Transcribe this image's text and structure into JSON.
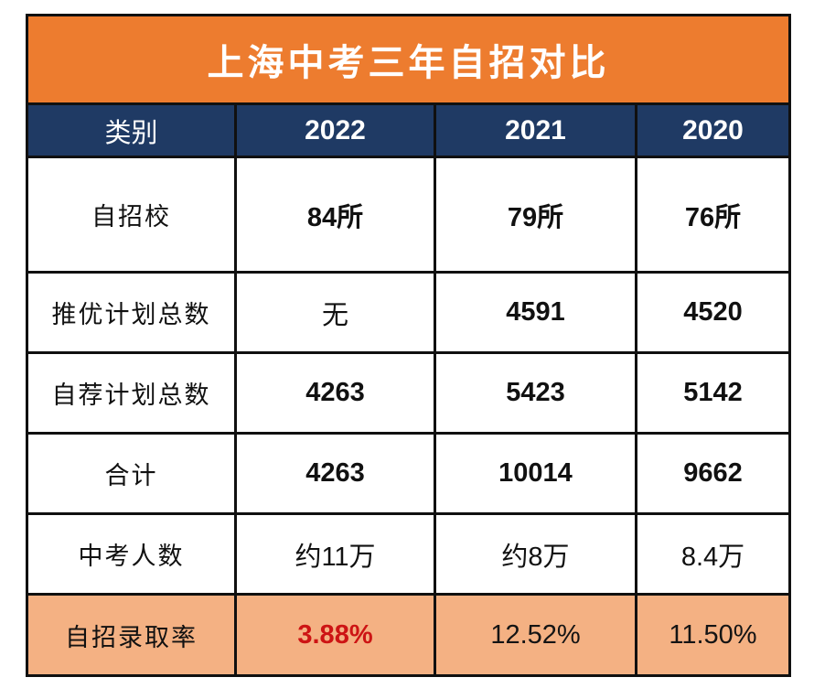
{
  "title": "上海中考三年自招对比",
  "header": {
    "category": "类别",
    "year1": "2022",
    "year2": "2021",
    "year3": "2020"
  },
  "rows": [
    {
      "label": "自招校",
      "values": [
        "84所",
        "79所",
        "76所"
      ]
    },
    {
      "label": "推优计划总数",
      "values": [
        "无",
        "4591",
        "4520"
      ]
    },
    {
      "label": "自荐计划总数",
      "values": [
        "4263",
        "5423",
        "5142"
      ]
    },
    {
      "label": "合计",
      "values": [
        "4263",
        "10014",
        "9662"
      ]
    },
    {
      "label": "中考人数",
      "values": [
        "约11万",
        "约8万",
        "8.4万"
      ]
    },
    {
      "label": "自招录取率",
      "values": [
        "3.88%",
        "12.52%",
        "11.50%"
      ]
    }
  ],
  "colors": {
    "title_bg": "#ED7C2F",
    "header_bg": "#1F3A64",
    "header_text": "#ffffff",
    "highlight_row_bg": "#F4B183",
    "highlight_value_text": "#CD1414",
    "grid_line": "#101010",
    "body_text": "#111111"
  },
  "chart_data": {
    "type": "table",
    "title": "上海中考三年自招对比",
    "columns": [
      "类别",
      "2022",
      "2021",
      "2020"
    ],
    "rows": [
      [
        "自招校",
        "84所",
        "79所",
        "76所"
      ],
      [
        "推优计划总数",
        "无",
        "4591",
        "4520"
      ],
      [
        "自荐计划总数",
        "4263",
        "5423",
        "5142"
      ],
      [
        "合计",
        "4263",
        "10014",
        "9662"
      ],
      [
        "中考人数",
        "约11万",
        "约8万",
        "8.4万"
      ],
      [
        "自招录取率",
        "3.88%",
        "12.52%",
        "11.50%"
      ]
    ],
    "notes": "自招录取率 row highlighted in light orange; 2022 rate 3.88% emphasized in red bold"
  }
}
